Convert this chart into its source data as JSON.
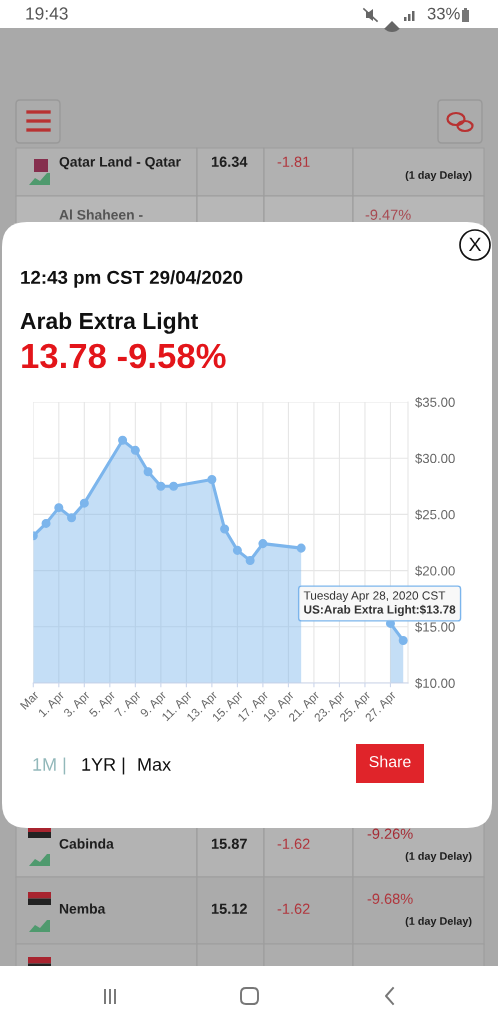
{
  "chart_data": {
    "type": "area",
    "title": "Arab Extra Light",
    "subtitle": "12:43 pm CST 29/04/2020",
    "x": [
      "2020-03-30",
      "2020-03-31",
      "2020-04-01",
      "2020-04-02",
      "2020-04-03",
      "2020-04-06",
      "2020-04-07",
      "2020-04-08",
      "2020-04-09",
      "2020-04-10",
      "2020-04-13",
      "2020-04-14",
      "2020-04-15",
      "2020-04-16",
      "2020-04-17",
      "2020-04-20",
      "2020-04-21",
      "2020-04-22",
      "2020-04-23",
      "2020-04-24",
      "2020-04-27",
      "2020-04-28"
    ],
    "values": [
      23.1,
      24.2,
      25.6,
      24.7,
      26.0,
      31.6,
      30.7,
      28.8,
      27.5,
      27.5,
      28.1,
      23.7,
      21.8,
      20.9,
      22.4,
      22.0,
      null,
      null,
      null,
      null,
      15.3,
      13.78
    ],
    "color": "#7cb5ec",
    "marker": "circle",
    "xlim": [
      "2020-03-30",
      "2020-04-28T09:00"
    ],
    "ylim": [
      10,
      35
    ],
    "xticks": [
      {
        "value": "2020-03-30",
        "label": "Mar"
      },
      {
        "value": "2020-04-01",
        "label": "1. Apr"
      },
      {
        "value": "2020-04-03",
        "label": "3. Apr"
      },
      {
        "value": "2020-04-05",
        "label": "5. Apr"
      },
      {
        "value": "2020-04-07",
        "label": "7. Apr"
      },
      {
        "value": "2020-04-09",
        "label": "9. Apr"
      },
      {
        "value": "2020-04-11",
        "label": "11. Apr"
      },
      {
        "value": "2020-04-13",
        "label": "13. Apr"
      },
      {
        "value": "2020-04-15",
        "label": "15. Apr"
      },
      {
        "value": "2020-04-17",
        "label": "17. Apr"
      },
      {
        "value": "2020-04-19",
        "label": "19. Apr"
      },
      {
        "value": "2020-04-21",
        "label": "21. Apr"
      },
      {
        "value": "2020-04-23",
        "label": "23. Apr"
      },
      {
        "value": "2020-04-25",
        "label": "25. Apr"
      },
      {
        "value": "2020-04-27",
        "label": "27. Apr"
      }
    ],
    "yticks": [
      {
        "value": 10,
        "label": "$10.00"
      },
      {
        "value": 15,
        "label": "$15.00"
      },
      {
        "value": 20,
        "label": "$20.00"
      },
      {
        "value": 25,
        "label": "$25.00"
      },
      {
        "value": 30,
        "label": "$30.00"
      },
      {
        "value": 35,
        "label": "$35.00"
      }
    ],
    "grid": true,
    "annotations": [
      "13.78 -9.58%",
      {
        "text": "Tuesday Apr 28, 2020 CST\nUS:Arab Extra Light:$13.78",
        "x": "2020-04-28",
        "y": 13.78
      },
      "X",
      "1M |",
      "1YR |",
      "Max",
      "Share",
      "19:43",
      "33%",
      "Qatar Land - Qatar",
      "16.34",
      "-1.81",
      "(1 day Delay)",
      "Al Shaheen -",
      "-9.47%",
      "Cabinda",
      "15.87",
      "-1.62",
      "-9.26%",
      "(1 day Delay)",
      "Nemba",
      "15.12",
      "-1.62",
      "-9.68%",
      "(1 day Delay)"
    ]
  }
}
